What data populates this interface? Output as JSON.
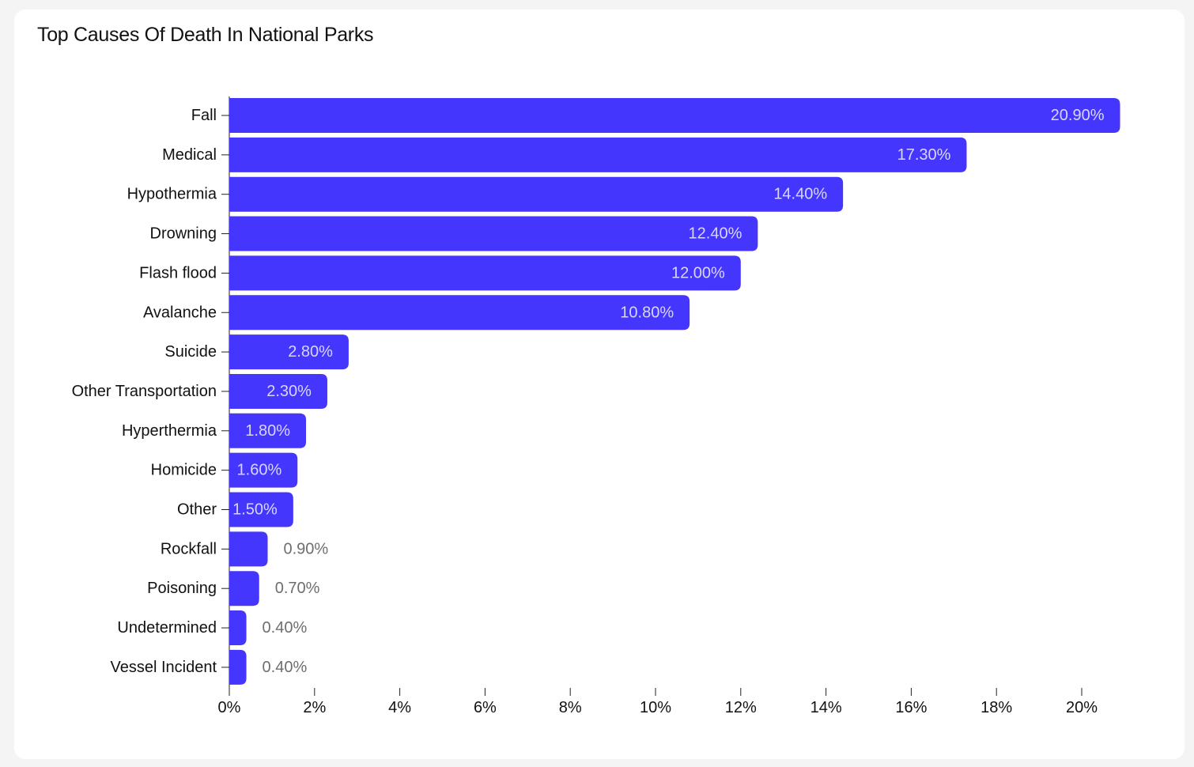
{
  "chart_data": {
    "type": "bar",
    "orientation": "horizontal",
    "title": "Top Causes Of Death In National Parks",
    "categories": [
      "Fall",
      "Medical",
      "Hypothermia",
      "Drowning",
      "Flash flood",
      "Avalanche",
      "Suicide",
      "Other Transportation",
      "Hyperthermia",
      "Homicide",
      "Other",
      "Rockfall",
      "Poisoning",
      "Undetermined",
      "Vessel Incident"
    ],
    "values": [
      20.9,
      17.3,
      14.4,
      12.4,
      12.0,
      10.8,
      2.8,
      2.3,
      1.8,
      1.6,
      1.5,
      0.9,
      0.7,
      0.4,
      0.4
    ],
    "value_labels": [
      "20.90%",
      "17.30%",
      "14.40%",
      "12.40%",
      "12.00%",
      "10.80%",
      "2.80%",
      "2.30%",
      "1.80%",
      "1.60%",
      "1.50%",
      "0.90%",
      "0.70%",
      "0.40%",
      "0.40%"
    ],
    "x_ticks": [
      0,
      2,
      4,
      6,
      8,
      10,
      12,
      14,
      16,
      18,
      20
    ],
    "x_tick_labels": [
      "0%",
      "2%",
      "4%",
      "6%",
      "8%",
      "10%",
      "12%",
      "14%",
      "16%",
      "18%",
      "20%"
    ],
    "xlim": [
      0,
      21
    ],
    "xlabel": "",
    "ylabel": "",
    "grid": false,
    "legend": "none",
    "bar_color": "#4536fd",
    "label_inside_color": "#d8d6ff",
    "label_outside_color": "#6e6e6e"
  }
}
